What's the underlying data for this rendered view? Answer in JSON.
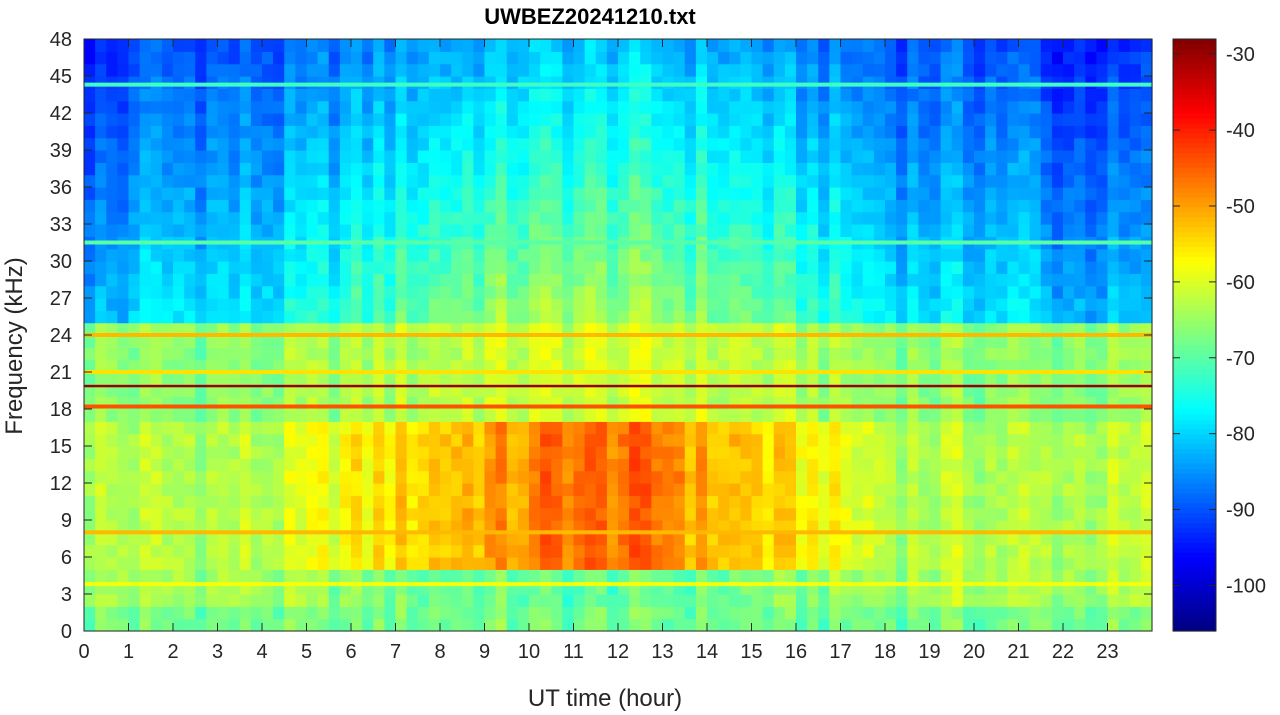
{
  "chart_data": {
    "type": "heatmap",
    "title": "UWBEZ20241210.txt",
    "xlabel": "UT time (hour)",
    "ylabel": "Frequency (kHz)",
    "xlim": [
      0,
      24
    ],
    "ylim": [
      0,
      48
    ],
    "x_ticks": [
      0,
      1,
      2,
      3,
      4,
      5,
      6,
      7,
      8,
      9,
      10,
      11,
      12,
      13,
      14,
      15,
      16,
      17,
      18,
      19,
      20,
      21,
      22,
      23
    ],
    "y_ticks": [
      0,
      3,
      6,
      9,
      12,
      15,
      18,
      21,
      24,
      27,
      30,
      33,
      36,
      39,
      42,
      45,
      48
    ],
    "colormap": "jet",
    "colorbar": {
      "range": [
        -106,
        -28
      ],
      "ticks": [
        -30,
        -40,
        -50,
        -60,
        -70,
        -80,
        -90,
        -100
      ]
    },
    "grid": false,
    "bands_khz": [
      {
        "f": 19.8,
        "level": -30
      },
      {
        "f": 18.2,
        "level": -44
      },
      {
        "f": 24.0,
        "level": -52
      },
      {
        "f": 21.0,
        "level": -55
      },
      {
        "f": 3.8,
        "level": -58
      },
      {
        "f": 8.0,
        "level": -52
      },
      {
        "f": 31.5,
        "level": -70
      },
      {
        "f": 44.3,
        "level": -72
      }
    ],
    "strong_emission": {
      "f_range": [
        5,
        17
      ],
      "t_range": [
        4.5,
        17.8
      ],
      "level": -48
    }
  }
}
